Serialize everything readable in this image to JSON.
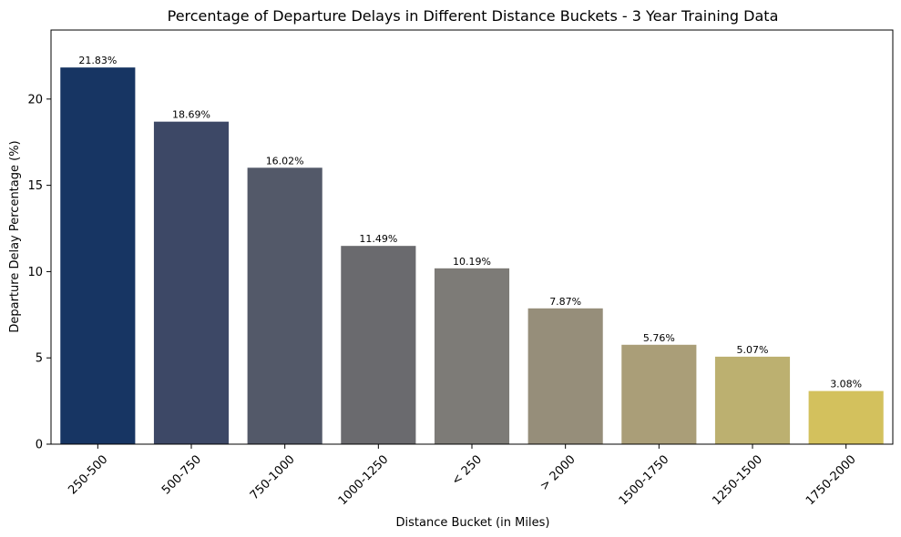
{
  "chart_data": {
    "type": "bar",
    "title": "Percentage of Departure Delays in Different Distance Buckets - 3 Year Training Data",
    "xlabel": "Distance Bucket (in Miles)",
    "ylabel": "Departure Delay Percentage (%)",
    "ylim": [
      0,
      24
    ],
    "yticks": [
      0,
      5,
      10,
      15,
      20
    ],
    "categories": [
      "250-500",
      "500-750",
      "750-1000",
      "1000-1250",
      "< 250",
      "> 2000",
      "1500-1750",
      "1250-1500",
      "1750-2000"
    ],
    "values": [
      21.83,
      18.69,
      16.02,
      11.49,
      10.19,
      7.87,
      5.76,
      5.07,
      3.08
    ],
    "data_labels": [
      "21.83%",
      "18.69%",
      "16.02%",
      "11.49%",
      "10.19%",
      "7.87%",
      "5.76%",
      "5.07%",
      "3.08%"
    ],
    "colors": [
      "#173563",
      "#3d4866",
      "#535969",
      "#6a6a6e",
      "#7d7b77",
      "#968e7a",
      "#aa9e78",
      "#bcb070",
      "#d3c15d"
    ],
    "grid": false,
    "legend": "none"
  }
}
